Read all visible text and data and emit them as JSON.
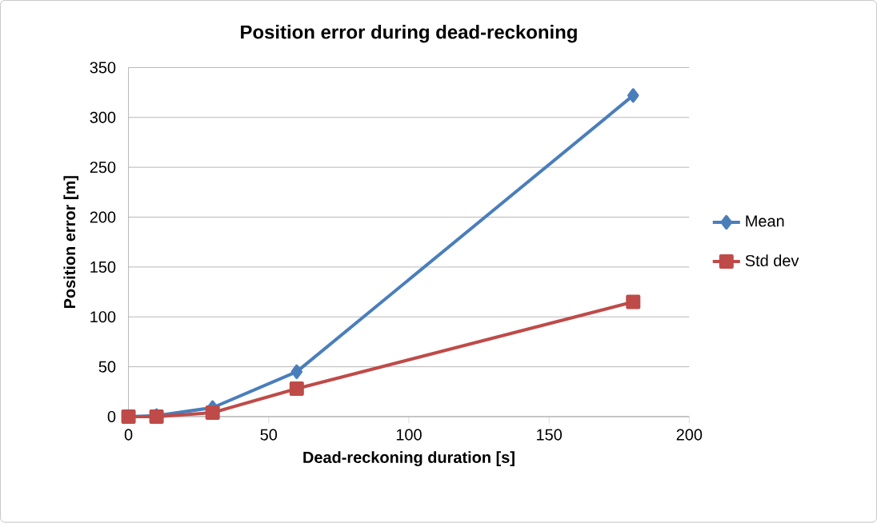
{
  "chart_data": {
    "type": "line",
    "title": "Position error during dead-reckoning",
    "xlabel": "Dead-reckoning duration [s]",
    "ylabel": "Position error [m]",
    "x": [
      0,
      10,
      30,
      60,
      180
    ],
    "series": [
      {
        "name": "Mean",
        "color": "#4a7ebb",
        "marker": "diamond",
        "values": [
          0,
          1,
          9,
          45,
          322
        ]
      },
      {
        "name": "Std dev",
        "color": "#be4b48",
        "marker": "square",
        "values": [
          0,
          0,
          4,
          28,
          115
        ]
      }
    ],
    "xlim": [
      0,
      200
    ],
    "xticks": [
      0,
      50,
      100,
      150,
      200
    ],
    "ylim": [
      0,
      350
    ],
    "yticks": [
      0,
      50,
      100,
      150,
      200,
      250,
      300,
      350
    ],
    "grid": "y",
    "legend": "right",
    "line_style": "solid"
  }
}
